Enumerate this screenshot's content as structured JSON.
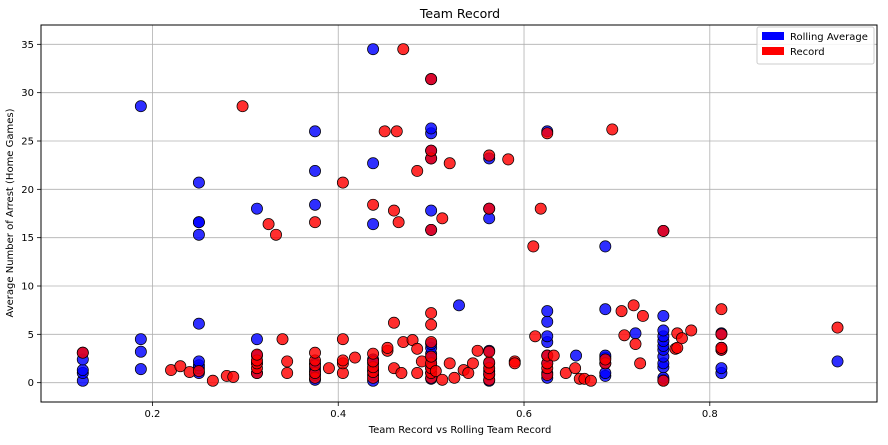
{
  "chart_data": {
    "type": "scatter",
    "title": "Team Record",
    "xlabel": "Team Record vs Rolling Team Record",
    "ylabel": "Average Number of Arrest (Home Games)",
    "xlim": [
      0.08,
      0.98
    ],
    "ylim": [
      -2,
      37
    ],
    "xticks": [
      0.2,
      0.4,
      0.6,
      0.8
    ],
    "xtick_labels": [
      "0.2",
      "0.4",
      "0.6",
      "0.8"
    ],
    "yticks": [
      0,
      5,
      10,
      15,
      20,
      25,
      30,
      35
    ],
    "ytick_labels": [
      "0",
      "5",
      "10",
      "15",
      "20",
      "25",
      "30",
      "35"
    ],
    "grid": true,
    "legend_position": "top-right",
    "series": [
      {
        "name": "Rolling Average",
        "color": "#0000ff",
        "points": [
          [
            0.125,
            0.2
          ],
          [
            0.125,
            1.0
          ],
          [
            0.125,
            1.3
          ],
          [
            0.125,
            2.4
          ],
          [
            0.125,
            3.1
          ],
          [
            0.1875,
            1.4
          ],
          [
            0.1875,
            3.2
          ],
          [
            0.1875,
            4.5
          ],
          [
            0.1875,
            28.6
          ],
          [
            0.25,
            1.0
          ],
          [
            0.25,
            1.5
          ],
          [
            0.25,
            1.8
          ],
          [
            0.25,
            2.2
          ],
          [
            0.25,
            6.1
          ],
          [
            0.25,
            15.3
          ],
          [
            0.25,
            16.6
          ],
          [
            0.25,
            16.6
          ],
          [
            0.25,
            20.7
          ],
          [
            0.3125,
            1.0
          ],
          [
            0.3125,
            2.0
          ],
          [
            0.3125,
            2.8
          ],
          [
            0.3125,
            4.5
          ],
          [
            0.3125,
            18.0
          ],
          [
            0.375,
            0.3
          ],
          [
            0.375,
            0.8
          ],
          [
            0.375,
            1.2
          ],
          [
            0.375,
            1.5
          ],
          [
            0.375,
            2.0
          ],
          [
            0.375,
            18.4
          ],
          [
            0.375,
            21.9
          ],
          [
            0.375,
            26.0
          ],
          [
            0.4375,
            0.2
          ],
          [
            0.4375,
            0.8
          ],
          [
            0.4375,
            1.3
          ],
          [
            0.4375,
            2.0
          ],
          [
            0.4375,
            2.4
          ],
          [
            0.4375,
            16.4
          ],
          [
            0.4375,
            22.7
          ],
          [
            0.4375,
            34.5
          ],
          [
            0.5,
            0.4
          ],
          [
            0.5,
            1.0
          ],
          [
            0.5,
            1.5
          ],
          [
            0.5,
            2.0
          ],
          [
            0.5,
            2.5
          ],
          [
            0.5,
            3.0
          ],
          [
            0.5,
            3.6
          ],
          [
            0.5,
            4.0
          ],
          [
            0.5,
            15.8
          ],
          [
            0.5,
            17.8
          ],
          [
            0.5,
            23.2
          ],
          [
            0.5,
            24.0
          ],
          [
            0.5,
            25.8
          ],
          [
            0.5,
            26.3
          ],
          [
            0.5,
            31.4
          ],
          [
            0.53,
            8.0
          ],
          [
            0.5625,
            0.2
          ],
          [
            0.5625,
            0.8
          ],
          [
            0.5625,
            1.2
          ],
          [
            0.5625,
            2.0
          ],
          [
            0.5625,
            3.3
          ],
          [
            0.5625,
            17.0
          ],
          [
            0.5625,
            18.0
          ],
          [
            0.5625,
            23.2
          ],
          [
            0.625,
            0.5
          ],
          [
            0.625,
            1.0
          ],
          [
            0.625,
            2.0
          ],
          [
            0.625,
            2.8
          ],
          [
            0.625,
            4.2
          ],
          [
            0.625,
            4.8
          ],
          [
            0.625,
            6.3
          ],
          [
            0.625,
            7.4
          ],
          [
            0.625,
            26.0
          ],
          [
            0.656,
            2.8
          ],
          [
            0.6875,
            0.7
          ],
          [
            0.6875,
            1.0
          ],
          [
            0.6875,
            2.0
          ],
          [
            0.6875,
            2.6
          ],
          [
            0.6875,
            2.8
          ],
          [
            0.6875,
            7.6
          ],
          [
            0.6875,
            14.1
          ],
          [
            0.72,
            5.1
          ],
          [
            0.75,
            0.3
          ],
          [
            0.75,
            0.5
          ],
          [
            0.75,
            1.6
          ],
          [
            0.75,
            2.0
          ],
          [
            0.75,
            2.7
          ],
          [
            0.75,
            3.4
          ],
          [
            0.75,
            3.8
          ],
          [
            0.75,
            4.3
          ],
          [
            0.75,
            4.8
          ],
          [
            0.75,
            5.4
          ],
          [
            0.75,
            6.9
          ],
          [
            0.75,
            15.7
          ],
          [
            0.8125,
            1.0
          ],
          [
            0.8125,
            1.5
          ],
          [
            0.8125,
            3.4
          ],
          [
            0.8125,
            3.6
          ],
          [
            0.8125,
            5.1
          ],
          [
            0.9375,
            2.2
          ]
        ]
      },
      {
        "name": "Record",
        "color": "#ff0000",
        "points": [
          [
            0.125,
            3.1
          ],
          [
            0.22,
            1.3
          ],
          [
            0.23,
            1.7
          ],
          [
            0.24,
            1.1
          ],
          [
            0.25,
            1.2
          ],
          [
            0.265,
            0.2
          ],
          [
            0.28,
            0.7
          ],
          [
            0.287,
            0.6
          ],
          [
            0.297,
            28.6
          ],
          [
            0.3125,
            1.0
          ],
          [
            0.3125,
            1.5
          ],
          [
            0.3125,
            2.0
          ],
          [
            0.3125,
            2.3
          ],
          [
            0.3125,
            2.9
          ],
          [
            0.325,
            16.4
          ],
          [
            0.333,
            15.3
          ],
          [
            0.34,
            4.5
          ],
          [
            0.345,
            1.0
          ],
          [
            0.345,
            2.2
          ],
          [
            0.375,
            0.5
          ],
          [
            0.375,
            1.0
          ],
          [
            0.375,
            1.8
          ],
          [
            0.375,
            2.3
          ],
          [
            0.375,
            3.1
          ],
          [
            0.375,
            16.6
          ],
          [
            0.39,
            1.5
          ],
          [
            0.405,
            1.0
          ],
          [
            0.405,
            2.0
          ],
          [
            0.405,
            2.3
          ],
          [
            0.405,
            4.5
          ],
          [
            0.405,
            20.7
          ],
          [
            0.418,
            2.6
          ],
          [
            0.4375,
            0.5
          ],
          [
            0.4375,
            1.1
          ],
          [
            0.4375,
            1.6
          ],
          [
            0.4375,
            2.2
          ],
          [
            0.4375,
            3.0
          ],
          [
            0.4375,
            18.4
          ],
          [
            0.45,
            26.0
          ],
          [
            0.453,
            3.3
          ],
          [
            0.453,
            3.6
          ],
          [
            0.46,
            1.5
          ],
          [
            0.46,
            6.2
          ],
          [
            0.46,
            17.8
          ],
          [
            0.463,
            26.0
          ],
          [
            0.465,
            16.6
          ],
          [
            0.468,
            1.0
          ],
          [
            0.47,
            4.2
          ],
          [
            0.47,
            34.5
          ],
          [
            0.48,
            4.4
          ],
          [
            0.485,
            1.0
          ],
          [
            0.485,
            3.5
          ],
          [
            0.485,
            21.9
          ],
          [
            0.49,
            2.2
          ],
          [
            0.5,
            0.5
          ],
          [
            0.5,
            1.0
          ],
          [
            0.5,
            1.5
          ],
          [
            0.5,
            2.0
          ],
          [
            0.5,
            2.7
          ],
          [
            0.5,
            4.2
          ],
          [
            0.5,
            6.0
          ],
          [
            0.5,
            7.2
          ],
          [
            0.5,
            15.8
          ],
          [
            0.5,
            23.2
          ],
          [
            0.5,
            24.0
          ],
          [
            0.5,
            31.4
          ],
          [
            0.505,
            1.2
          ],
          [
            0.512,
            17.0
          ],
          [
            0.512,
            0.3
          ],
          [
            0.52,
            2.0
          ],
          [
            0.52,
            22.7
          ],
          [
            0.525,
            0.5
          ],
          [
            0.535,
            1.3
          ],
          [
            0.54,
            1.0
          ],
          [
            0.545,
            2.0
          ],
          [
            0.55,
            3.3
          ],
          [
            0.5625,
            0.3
          ],
          [
            0.5625,
            0.9
          ],
          [
            0.5625,
            1.5
          ],
          [
            0.5625,
            2.1
          ],
          [
            0.5625,
            3.2
          ],
          [
            0.5625,
            18.0
          ],
          [
            0.5625,
            23.5
          ],
          [
            0.583,
            23.1
          ],
          [
            0.59,
            2.2
          ],
          [
            0.59,
            2.0
          ],
          [
            0.61,
            14.1
          ],
          [
            0.612,
            4.8
          ],
          [
            0.618,
            18.0
          ],
          [
            0.625,
            0.8
          ],
          [
            0.625,
            1.5
          ],
          [
            0.625,
            2.0
          ],
          [
            0.625,
            2.8
          ],
          [
            0.625,
            25.8
          ],
          [
            0.632,
            2.8
          ],
          [
            0.645,
            1.0
          ],
          [
            0.655,
            1.5
          ],
          [
            0.66,
            0.4
          ],
          [
            0.665,
            0.4
          ],
          [
            0.672,
            0.2
          ],
          [
            0.6875,
            2.0
          ],
          [
            0.6875,
            2.4
          ],
          [
            0.695,
            26.2
          ],
          [
            0.705,
            7.4
          ],
          [
            0.708,
            4.9
          ],
          [
            0.718,
            8.0
          ],
          [
            0.72,
            4.0
          ],
          [
            0.725,
            2.0
          ],
          [
            0.728,
            6.9
          ],
          [
            0.75,
            0.2
          ],
          [
            0.75,
            15.7
          ],
          [
            0.763,
            3.5
          ],
          [
            0.765,
            3.6
          ],
          [
            0.765,
            5.1
          ],
          [
            0.77,
            4.6
          ],
          [
            0.78,
            5.4
          ],
          [
            0.8125,
            3.4
          ],
          [
            0.8125,
            3.6
          ],
          [
            0.8125,
            5.0
          ],
          [
            0.8125,
            7.6
          ],
          [
            0.9375,
            5.7
          ]
        ]
      }
    ]
  }
}
